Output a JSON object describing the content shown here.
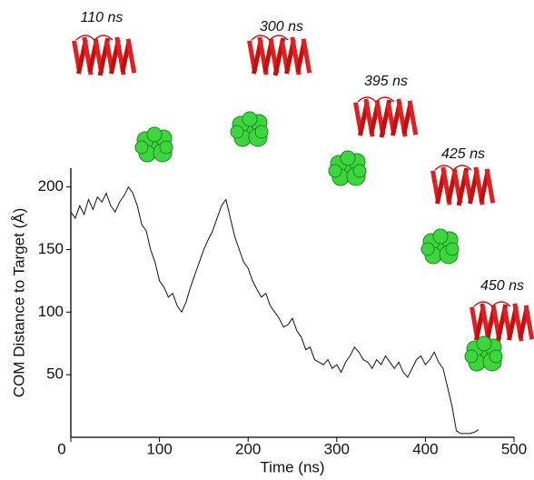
{
  "chart_data": {
    "type": "line",
    "x_label": "Time (ns)",
    "y_label": "COM Distance to Target (Å)",
    "annotations": [
      "110 ns",
      "300 ns",
      "395 ns",
      "425 ns",
      "450 ns"
    ],
    "x": [
      0,
      5,
      10,
      15,
      20,
      25,
      30,
      35,
      40,
      45,
      50,
      55,
      60,
      65,
      70,
      75,
      80,
      85,
      90,
      95,
      100,
      105,
      110,
      115,
      120,
      125,
      130,
      135,
      140,
      145,
      150,
      155,
      160,
      165,
      170,
      175,
      180,
      185,
      190,
      195,
      200,
      205,
      210,
      215,
      220,
      225,
      230,
      235,
      240,
      245,
      250,
      255,
      260,
      265,
      270,
      275,
      280,
      285,
      290,
      295,
      300,
      305,
      310,
      315,
      320,
      325,
      330,
      335,
      340,
      345,
      350,
      355,
      360,
      365,
      370,
      375,
      380,
      385,
      390,
      395,
      400,
      405,
      410,
      415,
      420,
      425,
      430,
      435,
      440,
      445,
      450,
      455,
      460
    ],
    "series": [
      {
        "color": "#111111",
        "values": [
          180,
          175,
          185,
          178,
          190,
          182,
          192,
          188,
          195,
          185,
          180,
          188,
          193,
          200,
          195,
          185,
          170,
          165,
          150,
          140,
          125,
          120,
          112,
          115,
          105,
          100,
          108,
          120,
          130,
          140,
          150,
          158,
          165,
          175,
          185,
          190,
          175,
          160,
          150,
          140,
          135,
          125,
          118,
          112,
          115,
          105,
          100,
          95,
          88,
          90,
          95,
          85,
          80,
          70,
          72,
          62,
          60,
          58,
          62,
          55,
          58,
          52,
          60,
          65,
          72,
          68,
          62,
          60,
          55,
          62,
          58,
          65,
          60,
          55,
          60,
          52,
          48,
          55,
          62,
          65,
          58,
          62,
          68,
          60,
          55,
          40,
          25,
          5,
          3,
          3,
          3,
          4,
          6
        ]
      }
    ],
    "xlim": [
      0,
      500
    ],
    "xticks": [
      0,
      100,
      200,
      300,
      400,
      500
    ],
    "ylim": [
      0,
      215
    ],
    "yticks": [
      50,
      100,
      150,
      200
    ]
  }
}
